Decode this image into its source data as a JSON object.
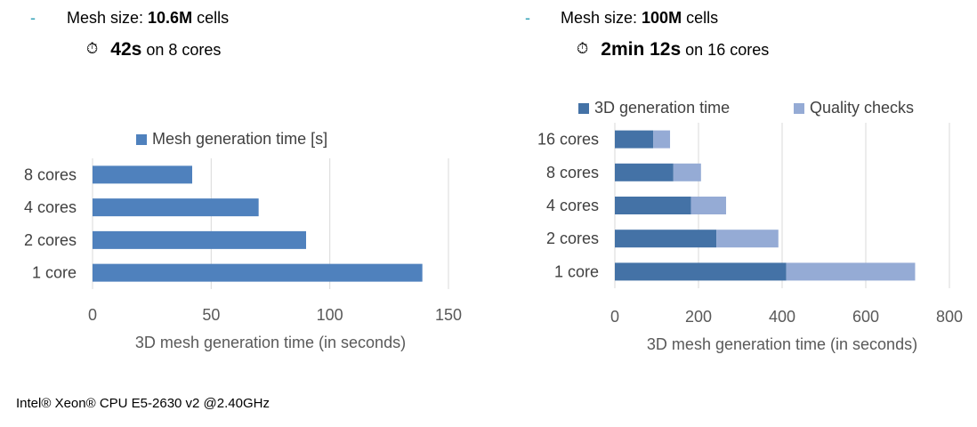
{
  "left_panel": {
    "bullet": "-",
    "mesh_prefix": "Mesh size: ",
    "mesh_value": "10.6M",
    "mesh_suffix": " cells",
    "clock_icon": "stopwatch-icon",
    "time_value": "42s",
    "time_suffix": "on 8 cores"
  },
  "right_panel": {
    "bullet": "-",
    "mesh_prefix": "Mesh size: ",
    "mesh_value": "100M",
    "mesh_suffix": " cells",
    "clock_icon": "stopwatch-icon",
    "time_value": "2min 12s",
    "time_suffix": "on 16 cores"
  },
  "footer": {
    "cpu_text": "Intel® Xeon® CPU E5-2630 v2 @2.40GHz"
  },
  "chart_data": [
    {
      "type": "bar",
      "orientation": "horizontal",
      "categories": [
        "8 cores",
        "4 cores",
        "2 cores",
        "1 core"
      ],
      "series": [
        {
          "name": "Mesh generation time [s]",
          "values": [
            42,
            70,
            90,
            139
          ],
          "color": "#4f81bd"
        }
      ],
      "xlabel": "3D mesh generation time (in seconds)",
      "xlim": [
        0,
        150
      ],
      "xticks": [
        0,
        50,
        100,
        150
      ],
      "grid": true,
      "legend": "top"
    },
    {
      "type": "bar",
      "orientation": "horizontal",
      "stacked": true,
      "categories": [
        "16 cores",
        "8 cores",
        "4 cores",
        "2 cores",
        "1 core"
      ],
      "series": [
        {
          "name": "3D generation time",
          "values": [
            92,
            140,
            182,
            243,
            410
          ],
          "color": "#4472a6"
        },
        {
          "name": "Quality checks",
          "values": [
            40,
            66,
            84,
            148,
            308
          ],
          "color": "#95abd5"
        }
      ],
      "xlabel": "3D mesh generation time (in seconds)",
      "xlim": [
        0,
        800
      ],
      "xticks": [
        0,
        200,
        400,
        600,
        800
      ],
      "grid": true,
      "legend": "top"
    }
  ]
}
